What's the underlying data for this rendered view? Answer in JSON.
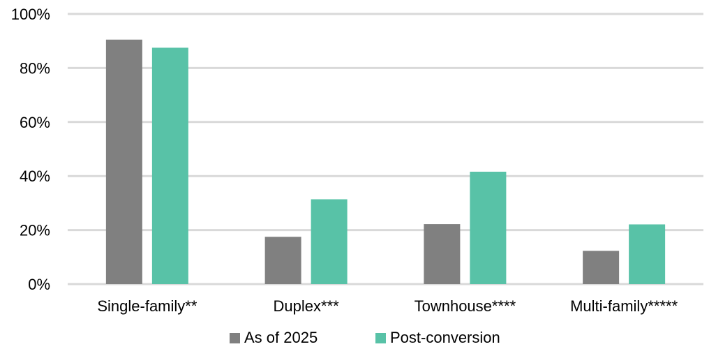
{
  "chart_data": {
    "type": "bar",
    "title": "",
    "xlabel": "",
    "ylabel": "",
    "categories": [
      "Single-family**",
      "Duplex***",
      "Townhouse****",
      "Multi-family*****"
    ],
    "series": [
      {
        "name": "As of 2025",
        "color": "#808080",
        "values": [
          90.5,
          17.5,
          22.2,
          12.3
        ]
      },
      {
        "name": "Post-conversion",
        "color": "#58C2A7",
        "values": [
          87.5,
          31.4,
          41.6,
          22.1
        ]
      }
    ],
    "ylim": [
      0,
      100
    ],
    "yticks": [
      0,
      20,
      40,
      60,
      80,
      100
    ],
    "ytick_labels": [
      "0%",
      "20%",
      "40%",
      "60%",
      "80%",
      "100%"
    ],
    "grid": true,
    "gridline_color": "#D9D9D9",
    "legend_position": "bottom"
  }
}
